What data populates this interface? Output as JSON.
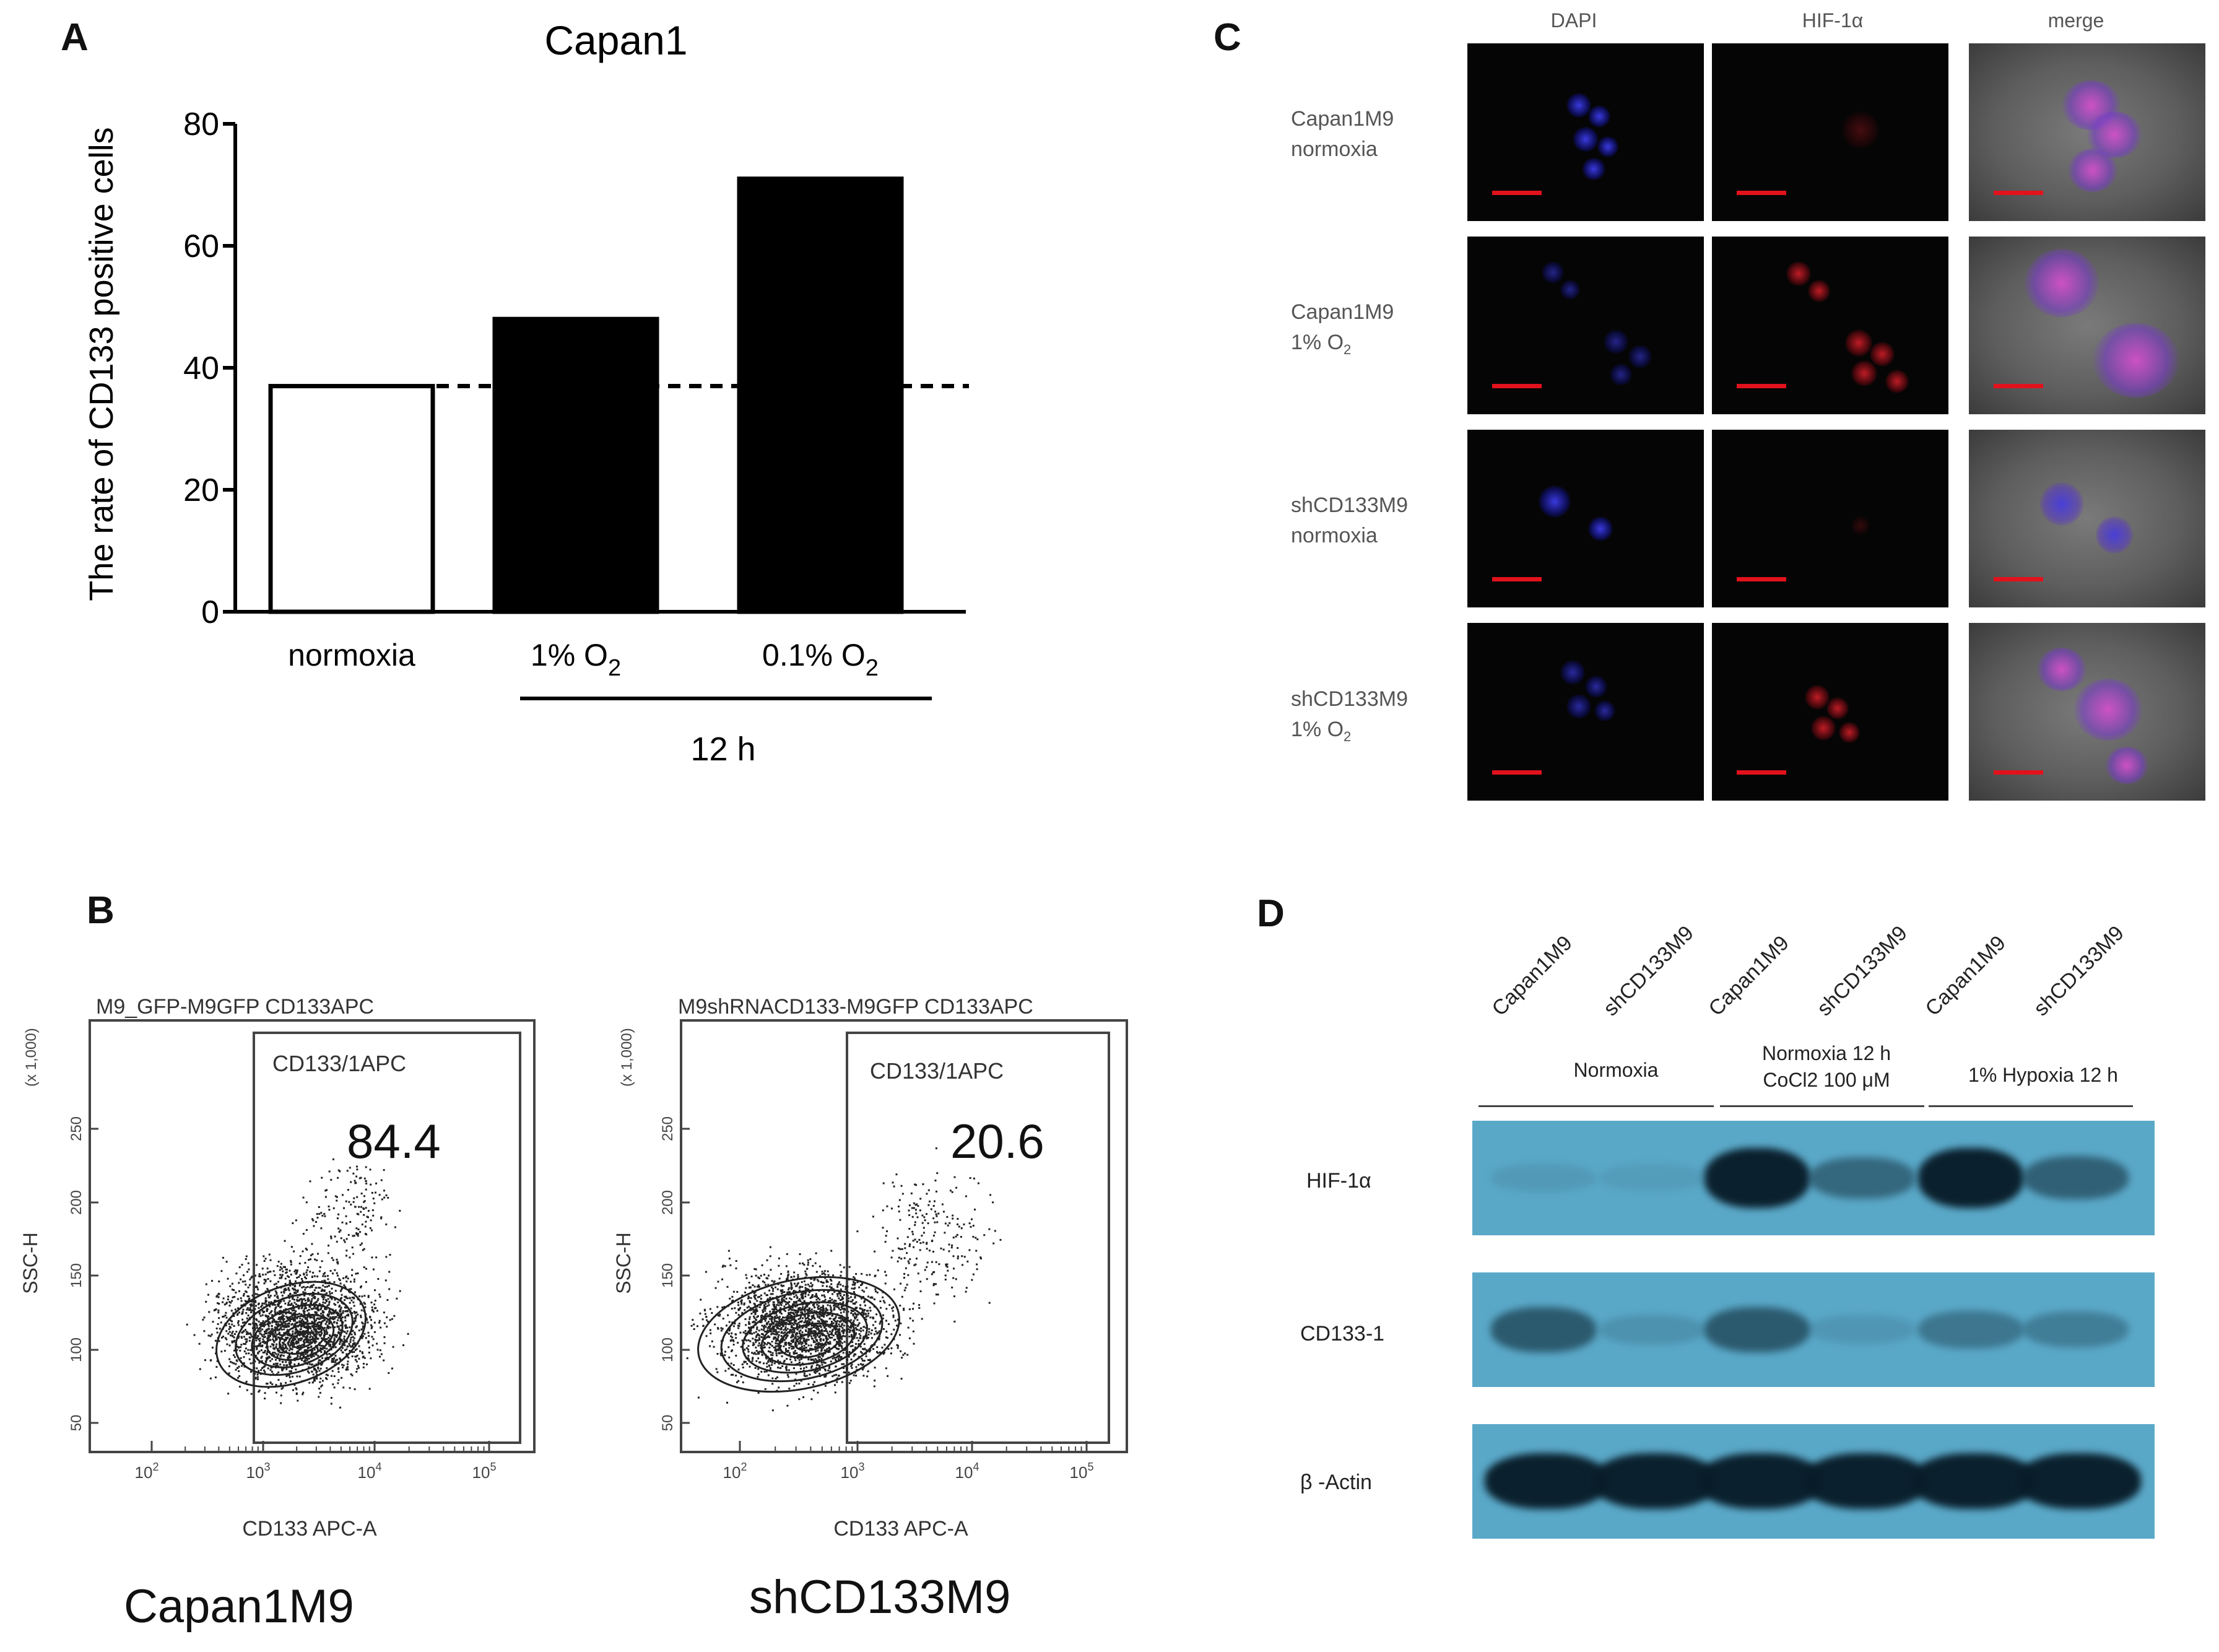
{
  "panels": {
    "A": "A",
    "B": "B",
    "C": "C",
    "D": "D"
  },
  "chart_data": {
    "type": "bar",
    "title": "Capan1",
    "ylabel": "The rate of CD133 positive cells",
    "xlabel": "",
    "ylim": [
      0,
      80
    ],
    "yticks": [
      0,
      20,
      40,
      60,
      80
    ],
    "categories": [
      "normoxia",
      "1% O2",
      "0.1% O2"
    ],
    "category_display": [
      {
        "main": "normoxia",
        "sub": ""
      },
      {
        "main": "1% O",
        "sub": "2"
      },
      {
        "main": "0.1% O",
        "sub": "2"
      }
    ],
    "values": [
      37,
      48,
      71
    ],
    "fills": [
      "#ffffff",
      "#000000",
      "#000000"
    ],
    "reference_line": 37,
    "group_label": "12 h"
  },
  "panelB": {
    "plots": [
      {
        "header": "M9_GFP-M9GFP CD133APC",
        "gate_label": "CD133/1APC",
        "percent": "84.4",
        "x_label": "CD133 APC-A",
        "y_label": "SSC-H",
        "y_scale_note": "(x 1,000)",
        "caption": "Capan1M9"
      },
      {
        "header": "M9shRNACD133-M9GFP CD133APC",
        "gate_label": "CD133/1APC",
        "percent": "20.6",
        "x_label": "CD133 APC-A",
        "y_label": "SSC-H",
        "y_scale_note": "(x 1,000)",
        "caption": "shCD133M9"
      }
    ],
    "y_ticks": [
      "50",
      "100",
      "150",
      "200",
      "250"
    ],
    "x_ticks": [
      {
        "base": "10",
        "exp": "2"
      },
      {
        "base": "10",
        "exp": "3"
      },
      {
        "base": "10",
        "exp": "4"
      },
      {
        "base": "10",
        "exp": "5"
      }
    ]
  },
  "panelC": {
    "columns": [
      "DAPI",
      "HIF-1α",
      "merge"
    ],
    "rows": [
      {
        "line1": "Capan1M9",
        "line2": "normoxia",
        "sub": ""
      },
      {
        "line1": "Capan1M9",
        "line2": "1% O",
        "sub": "2"
      },
      {
        "line1": "shCD133M9",
        "line2": "normoxia",
        "sub": ""
      },
      {
        "line1": "shCD133M9",
        "line2": "1% O",
        "sub": "2"
      }
    ]
  },
  "panelD": {
    "lanes": [
      "Capan1M9",
      "shCD133M9",
      "Capan1M9",
      "shCD133M9",
      "Capan1M9",
      "shCD133M9"
    ],
    "conditions": [
      {
        "line1": "Normoxia",
        "line2": ""
      },
      {
        "line1": "Normoxia 12 h",
        "line2": "CoCl2 100 μM"
      },
      {
        "line1": "1% Hypoxia 12 h",
        "line2": ""
      }
    ],
    "blots": [
      "HIF-1α",
      "CD133-1",
      "β -Actin"
    ],
    "band_intensity": {
      "HIF-1α": [
        0.1,
        0.08,
        0.95,
        0.45,
        0.95,
        0.5
      ],
      "CD133-1": [
        0.55,
        0.15,
        0.55,
        0.12,
        0.35,
        0.3
      ],
      "β -Actin": [
        0.95,
        0.95,
        0.95,
        0.95,
        0.95,
        0.95
      ]
    }
  }
}
